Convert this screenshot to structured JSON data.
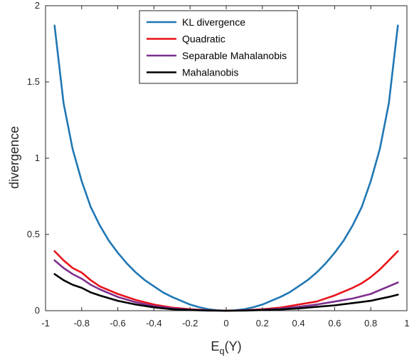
{
  "chart_data": {
    "type": "line",
    "xlabel": "E",
    "xlabel_sub": "q",
    "xlabel_tail": "(Y)",
    "ylabel": "divergence",
    "xlim": [
      -1,
      1
    ],
    "ylim": [
      0,
      2
    ],
    "xticks": [
      -1,
      -0.8,
      -0.6,
      -0.4,
      -0.2,
      0,
      0.2,
      0.4,
      0.6,
      0.8,
      1
    ],
    "xtick_labels": [
      "-1",
      "-0.8",
      "-0.6",
      "-0.4",
      "-0.2",
      "0",
      "0.2",
      "0.4",
      "0.6",
      "0.8",
      "1"
    ],
    "yticks": [
      0,
      0.5,
      1,
      1.5,
      2
    ],
    "ytick_labels": [
      "0",
      "0.5",
      "1",
      "1.5",
      "2"
    ],
    "grid": false,
    "legend_position": "top-center",
    "series": [
      {
        "name": "KL divergence",
        "color": "#1f77b4",
        "x": [
          -0.95,
          -0.9,
          -0.85,
          -0.8,
          -0.75,
          -0.7,
          -0.65,
          -0.6,
          -0.55,
          -0.5,
          -0.45,
          -0.4,
          -0.35,
          -0.3,
          -0.25,
          -0.2,
          -0.15,
          -0.1,
          -0.05,
          0,
          0.05,
          0.1,
          0.15,
          0.2,
          0.25,
          0.3,
          0.35,
          0.4,
          0.45,
          0.5,
          0.55,
          0.6,
          0.65,
          0.7,
          0.75,
          0.8,
          0.85,
          0.9,
          0.95
        ],
        "y": [
          1.87,
          1.36,
          1.06,
          0.85,
          0.68,
          0.56,
          0.46,
          0.38,
          0.31,
          0.25,
          0.2,
          0.16,
          0.12,
          0.09,
          0.065,
          0.04,
          0.023,
          0.01,
          0.003,
          0,
          0.003,
          0.01,
          0.023,
          0.04,
          0.065,
          0.09,
          0.12,
          0.16,
          0.2,
          0.25,
          0.31,
          0.38,
          0.46,
          0.56,
          0.68,
          0.85,
          1.06,
          1.36,
          1.87
        ]
      },
      {
        "name": "Quadratic",
        "color": "#e8131a",
        "x": [
          -0.95,
          -0.9,
          -0.85,
          -0.8,
          -0.75,
          -0.7,
          -0.6,
          -0.5,
          -0.4,
          -0.3,
          -0.2,
          -0.1,
          0,
          0.1,
          0.2,
          0.3,
          0.4,
          0.5,
          0.6,
          0.7,
          0.75,
          0.8,
          0.85,
          0.9,
          0.95
        ],
        "y": [
          0.39,
          0.33,
          0.28,
          0.25,
          0.2,
          0.16,
          0.11,
          0.07,
          0.04,
          0.02,
          0.01,
          0.003,
          0,
          0.003,
          0.01,
          0.02,
          0.04,
          0.06,
          0.1,
          0.15,
          0.18,
          0.22,
          0.27,
          0.33,
          0.39
        ]
      },
      {
        "name": "Separable Mahalanobis",
        "color": "#7e2f8e",
        "x": [
          -0.95,
          -0.9,
          -0.85,
          -0.8,
          -0.75,
          -0.7,
          -0.6,
          -0.5,
          -0.4,
          -0.3,
          -0.2,
          -0.1,
          0,
          0.1,
          0.2,
          0.3,
          0.4,
          0.5,
          0.6,
          0.7,
          0.8,
          0.85,
          0.9,
          0.95
        ],
        "y": [
          0.33,
          0.28,
          0.24,
          0.21,
          0.17,
          0.14,
          0.09,
          0.055,
          0.03,
          0.015,
          0.006,
          0.002,
          0,
          0.002,
          0.006,
          0.013,
          0.025,
          0.04,
          0.06,
          0.08,
          0.11,
          0.135,
          0.16,
          0.185
        ]
      },
      {
        "name": "Mahalanobis",
        "color": "#000000",
        "x": [
          -0.95,
          -0.9,
          -0.85,
          -0.8,
          -0.75,
          -0.7,
          -0.6,
          -0.5,
          -0.4,
          -0.3,
          -0.2,
          -0.1,
          0,
          0.1,
          0.2,
          0.3,
          0.4,
          0.5,
          0.6,
          0.7,
          0.8,
          0.85,
          0.9,
          0.95
        ],
        "y": [
          0.24,
          0.2,
          0.17,
          0.15,
          0.12,
          0.1,
          0.065,
          0.04,
          0.022,
          0.01,
          0.004,
          0.001,
          0,
          0.001,
          0.004,
          0.008,
          0.015,
          0.025,
          0.035,
          0.05,
          0.065,
          0.078,
          0.09,
          0.105
        ]
      }
    ]
  }
}
